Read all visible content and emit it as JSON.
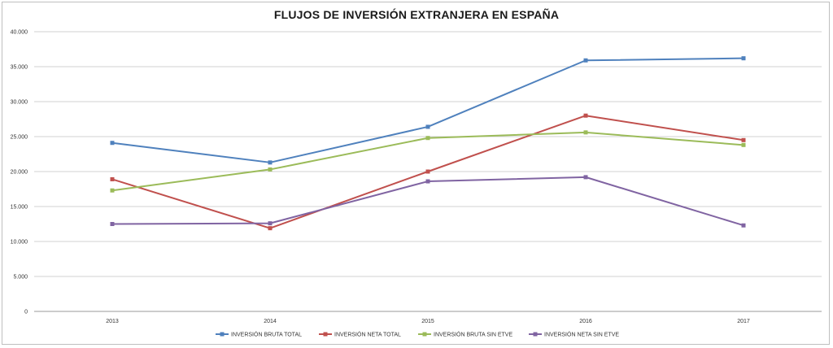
{
  "chart_data": {
    "type": "line",
    "title": "FLUJOS DE INVERSIÓN EXTRANJERA EN ESPAÑA",
    "categories": [
      "2013",
      "2014",
      "2015",
      "2016",
      "2017"
    ],
    "ylim": [
      0,
      40000
    ],
    "yticks": [
      0,
      5000,
      10000,
      15000,
      20000,
      25000,
      30000,
      35000,
      40000
    ],
    "ytick_labels": [
      "0",
      "5.000",
      "10.000",
      "15.000",
      "20.000",
      "25.000",
      "30.000",
      "35.000",
      "40.000"
    ],
    "grid": true,
    "legend_position": "bottom",
    "series": [
      {
        "name": "INVERSIÓN BRUTA TOTAL",
        "color": "#4f81bd",
        "values": [
          24100,
          21300,
          26400,
          35900,
          36200
        ]
      },
      {
        "name": "INVERSIÓN NETA TOTAL",
        "color": "#c0504d",
        "values": [
          18900,
          11900,
          20000,
          28000,
          24500
        ]
      },
      {
        "name": "INVERSIÓN BRUTA SIN ETVE",
        "color": "#9bbb59",
        "values": [
          17300,
          20300,
          24800,
          25600,
          23800
        ]
      },
      {
        "name": "INVERSIÓN NETA SIN ETVE",
        "color": "#8064a2",
        "values": [
          12500,
          12600,
          18600,
          19200,
          12300
        ]
      }
    ]
  }
}
